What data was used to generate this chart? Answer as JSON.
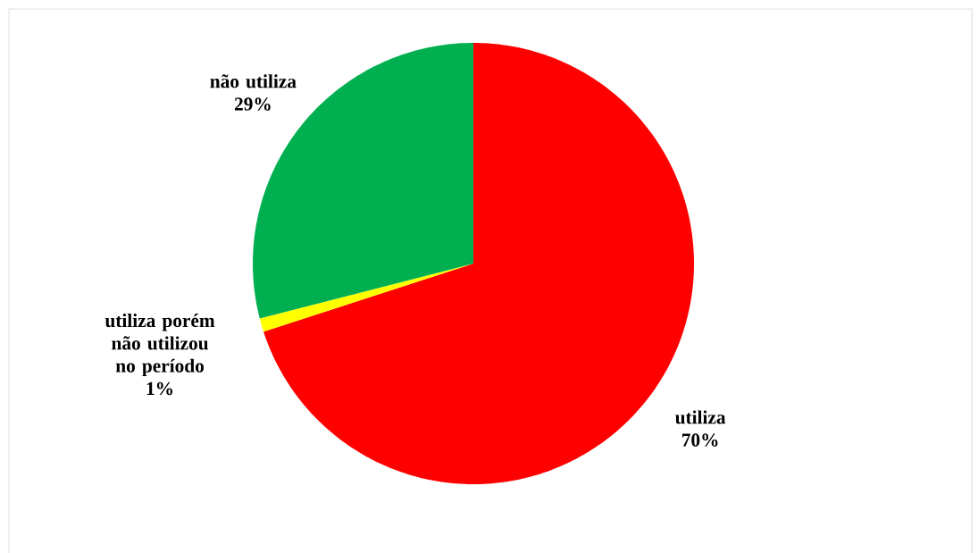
{
  "chart_data": {
    "type": "pie",
    "categories": [
      "utiliza",
      "utiliza porém não utilizou no período",
      "não utiliza"
    ],
    "values": [
      70,
      1,
      29
    ],
    "value_labels": [
      "70%",
      "1%",
      "29%"
    ],
    "colors": [
      "#ff0000",
      "#ffff00",
      "#00b050"
    ]
  }
}
